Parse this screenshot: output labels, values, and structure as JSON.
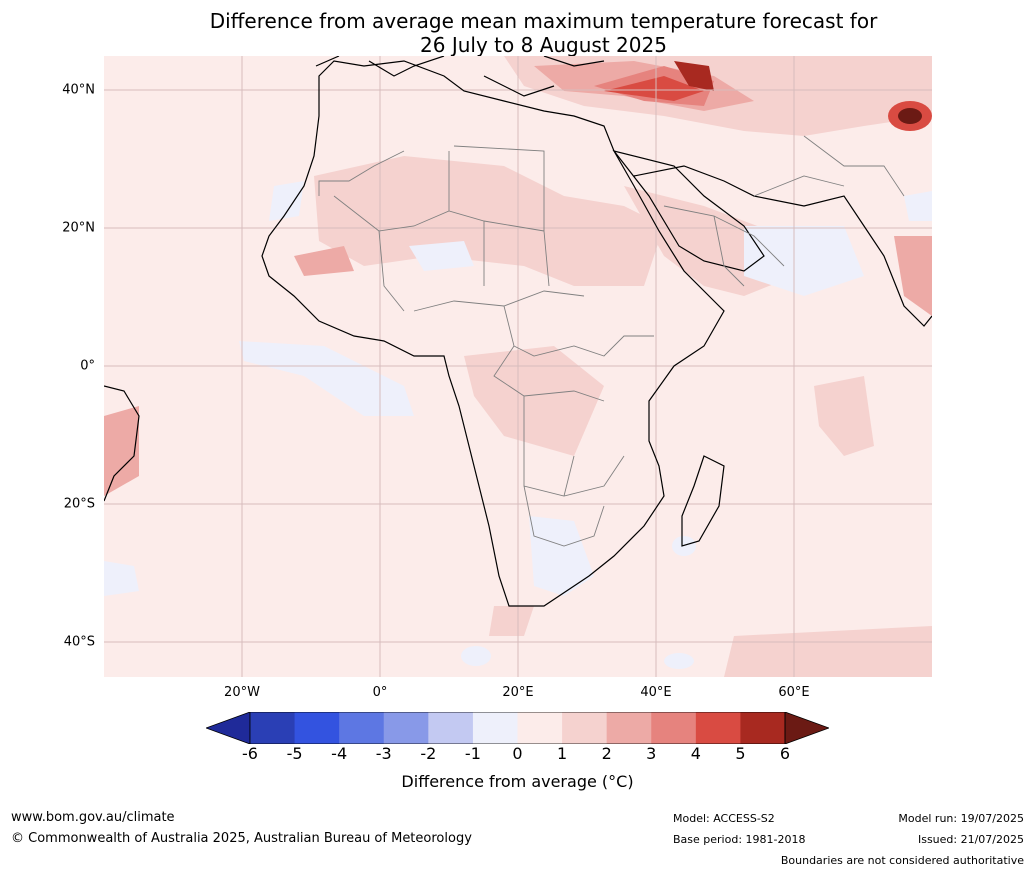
{
  "title": {
    "line1": "Difference from average mean maximum temperature forecast for",
    "line2": "26 July to 8 August 2025"
  },
  "map": {
    "lat_labels": [
      "40°N",
      "20°N",
      "0°",
      "20°S",
      "40°S"
    ],
    "lon_labels": [
      "20°W",
      "0°",
      "20°E",
      "40°E",
      "60°E"
    ],
    "background_color": "#fcecea",
    "land_outline_color": "#000000",
    "border_color": "#808080",
    "grid_color": "#d7bcbc"
  },
  "colorbar": {
    "ticks": [
      "-6",
      "-5",
      "-4",
      "-3",
      "-2",
      "-1",
      "0",
      "1",
      "2",
      "3",
      "4",
      "5",
      "6"
    ],
    "colors": [
      "#1f2a99",
      "#2a3fb5",
      "#3353e0",
      "#5d77e3",
      "#8899e8",
      "#c3c9f2",
      "#eef0fb",
      "#fcecea",
      "#f5d2cf",
      "#edaaa6",
      "#e6837e",
      "#d94b42",
      "#a82920",
      "#6b1a14"
    ],
    "label": "Difference from average ( $^\\circ$C)",
    "label_display": "Difference from average (°C)"
  },
  "footer": {
    "url": "www.bom.gov.au/climate",
    "copyright": "© Commonwealth of Australia 2025, Australian Bureau of Meteorology",
    "model": "Model: ACCESS-S2",
    "base_period": "Base period: 1981-2018",
    "model_run": "Model run: 19/07/2025",
    "issued": "Issued: 21/07/2025",
    "disclaimer": "Boundaries are not considered authoritative"
  }
}
